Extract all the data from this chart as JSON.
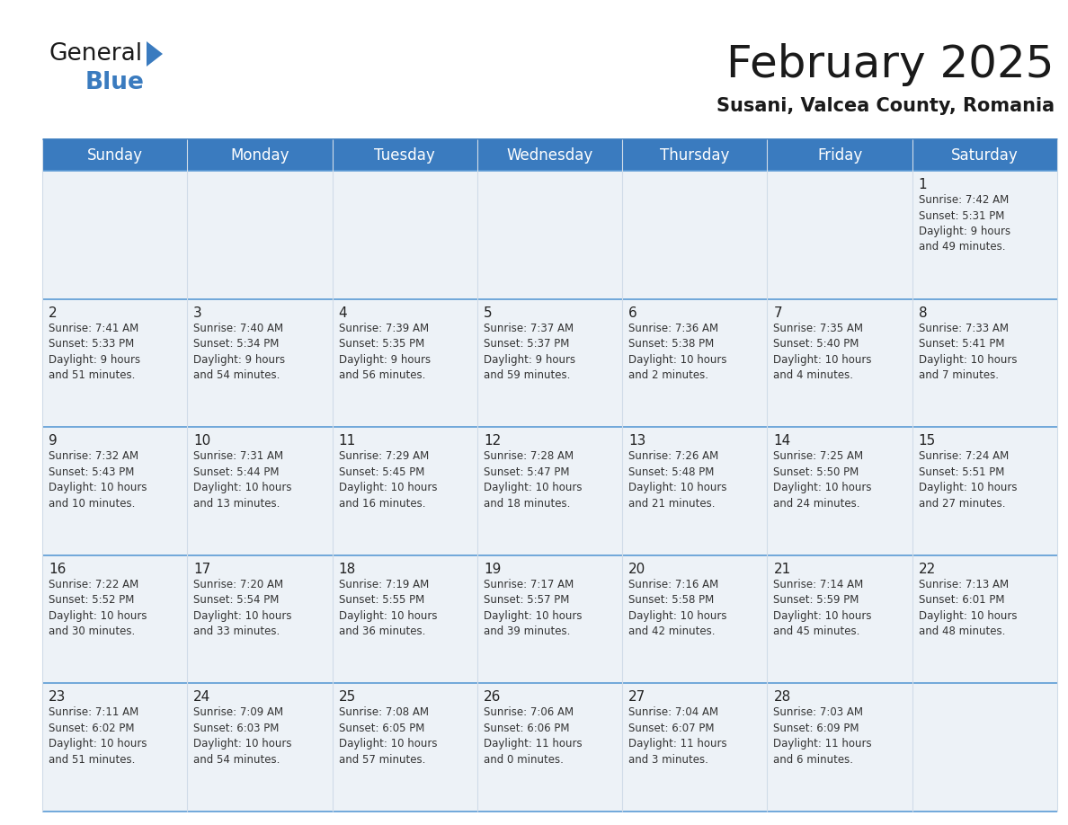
{
  "title": "February 2025",
  "subtitle": "Susani, Valcea County, Romania",
  "header_color": "#3a7bbf",
  "header_text_color": "#ffffff",
  "cell_bg_color": "#edf2f7",
  "alt_cell_bg_color": "#ffffff",
  "border_color": "#3a7bbf",
  "row_line_color": "#5b9bd5",
  "col_line_color": "#d0dce8",
  "days_of_week": [
    "Sunday",
    "Monday",
    "Tuesday",
    "Wednesday",
    "Thursday",
    "Friday",
    "Saturday"
  ],
  "weeks": [
    [
      {
        "day": "",
        "info": ""
      },
      {
        "day": "",
        "info": ""
      },
      {
        "day": "",
        "info": ""
      },
      {
        "day": "",
        "info": ""
      },
      {
        "day": "",
        "info": ""
      },
      {
        "day": "",
        "info": ""
      },
      {
        "day": "1",
        "info": "Sunrise: 7:42 AM\nSunset: 5:31 PM\nDaylight: 9 hours\nand 49 minutes."
      }
    ],
    [
      {
        "day": "2",
        "info": "Sunrise: 7:41 AM\nSunset: 5:33 PM\nDaylight: 9 hours\nand 51 minutes."
      },
      {
        "day": "3",
        "info": "Sunrise: 7:40 AM\nSunset: 5:34 PM\nDaylight: 9 hours\nand 54 minutes."
      },
      {
        "day": "4",
        "info": "Sunrise: 7:39 AM\nSunset: 5:35 PM\nDaylight: 9 hours\nand 56 minutes."
      },
      {
        "day": "5",
        "info": "Sunrise: 7:37 AM\nSunset: 5:37 PM\nDaylight: 9 hours\nand 59 minutes."
      },
      {
        "day": "6",
        "info": "Sunrise: 7:36 AM\nSunset: 5:38 PM\nDaylight: 10 hours\nand 2 minutes."
      },
      {
        "day": "7",
        "info": "Sunrise: 7:35 AM\nSunset: 5:40 PM\nDaylight: 10 hours\nand 4 minutes."
      },
      {
        "day": "8",
        "info": "Sunrise: 7:33 AM\nSunset: 5:41 PM\nDaylight: 10 hours\nand 7 minutes."
      }
    ],
    [
      {
        "day": "9",
        "info": "Sunrise: 7:32 AM\nSunset: 5:43 PM\nDaylight: 10 hours\nand 10 minutes."
      },
      {
        "day": "10",
        "info": "Sunrise: 7:31 AM\nSunset: 5:44 PM\nDaylight: 10 hours\nand 13 minutes."
      },
      {
        "day": "11",
        "info": "Sunrise: 7:29 AM\nSunset: 5:45 PM\nDaylight: 10 hours\nand 16 minutes."
      },
      {
        "day": "12",
        "info": "Sunrise: 7:28 AM\nSunset: 5:47 PM\nDaylight: 10 hours\nand 18 minutes."
      },
      {
        "day": "13",
        "info": "Sunrise: 7:26 AM\nSunset: 5:48 PM\nDaylight: 10 hours\nand 21 minutes."
      },
      {
        "day": "14",
        "info": "Sunrise: 7:25 AM\nSunset: 5:50 PM\nDaylight: 10 hours\nand 24 minutes."
      },
      {
        "day": "15",
        "info": "Sunrise: 7:24 AM\nSunset: 5:51 PM\nDaylight: 10 hours\nand 27 minutes."
      }
    ],
    [
      {
        "day": "16",
        "info": "Sunrise: 7:22 AM\nSunset: 5:52 PM\nDaylight: 10 hours\nand 30 minutes."
      },
      {
        "day": "17",
        "info": "Sunrise: 7:20 AM\nSunset: 5:54 PM\nDaylight: 10 hours\nand 33 minutes."
      },
      {
        "day": "18",
        "info": "Sunrise: 7:19 AM\nSunset: 5:55 PM\nDaylight: 10 hours\nand 36 minutes."
      },
      {
        "day": "19",
        "info": "Sunrise: 7:17 AM\nSunset: 5:57 PM\nDaylight: 10 hours\nand 39 minutes."
      },
      {
        "day": "20",
        "info": "Sunrise: 7:16 AM\nSunset: 5:58 PM\nDaylight: 10 hours\nand 42 minutes."
      },
      {
        "day": "21",
        "info": "Sunrise: 7:14 AM\nSunset: 5:59 PM\nDaylight: 10 hours\nand 45 minutes."
      },
      {
        "day": "22",
        "info": "Sunrise: 7:13 AM\nSunset: 6:01 PM\nDaylight: 10 hours\nand 48 minutes."
      }
    ],
    [
      {
        "day": "23",
        "info": "Sunrise: 7:11 AM\nSunset: 6:02 PM\nDaylight: 10 hours\nand 51 minutes."
      },
      {
        "day": "24",
        "info": "Sunrise: 7:09 AM\nSunset: 6:03 PM\nDaylight: 10 hours\nand 54 minutes."
      },
      {
        "day": "25",
        "info": "Sunrise: 7:08 AM\nSunset: 6:05 PM\nDaylight: 10 hours\nand 57 minutes."
      },
      {
        "day": "26",
        "info": "Sunrise: 7:06 AM\nSunset: 6:06 PM\nDaylight: 11 hours\nand 0 minutes."
      },
      {
        "day": "27",
        "info": "Sunrise: 7:04 AM\nSunset: 6:07 PM\nDaylight: 11 hours\nand 3 minutes."
      },
      {
        "day": "28",
        "info": "Sunrise: 7:03 AM\nSunset: 6:09 PM\nDaylight: 11 hours\nand 6 minutes."
      },
      {
        "day": "",
        "info": ""
      }
    ]
  ],
  "logo_text_general": "General",
  "logo_text_blue": "Blue",
  "logo_color_general": "#1a1a1a",
  "logo_color_blue": "#3a7bbf",
  "logo_triangle_color": "#3a7bbf",
  "title_fontsize": 36,
  "subtitle_fontsize": 15,
  "day_header_fontsize": 12,
  "day_num_fontsize": 11,
  "info_fontsize": 8.5
}
